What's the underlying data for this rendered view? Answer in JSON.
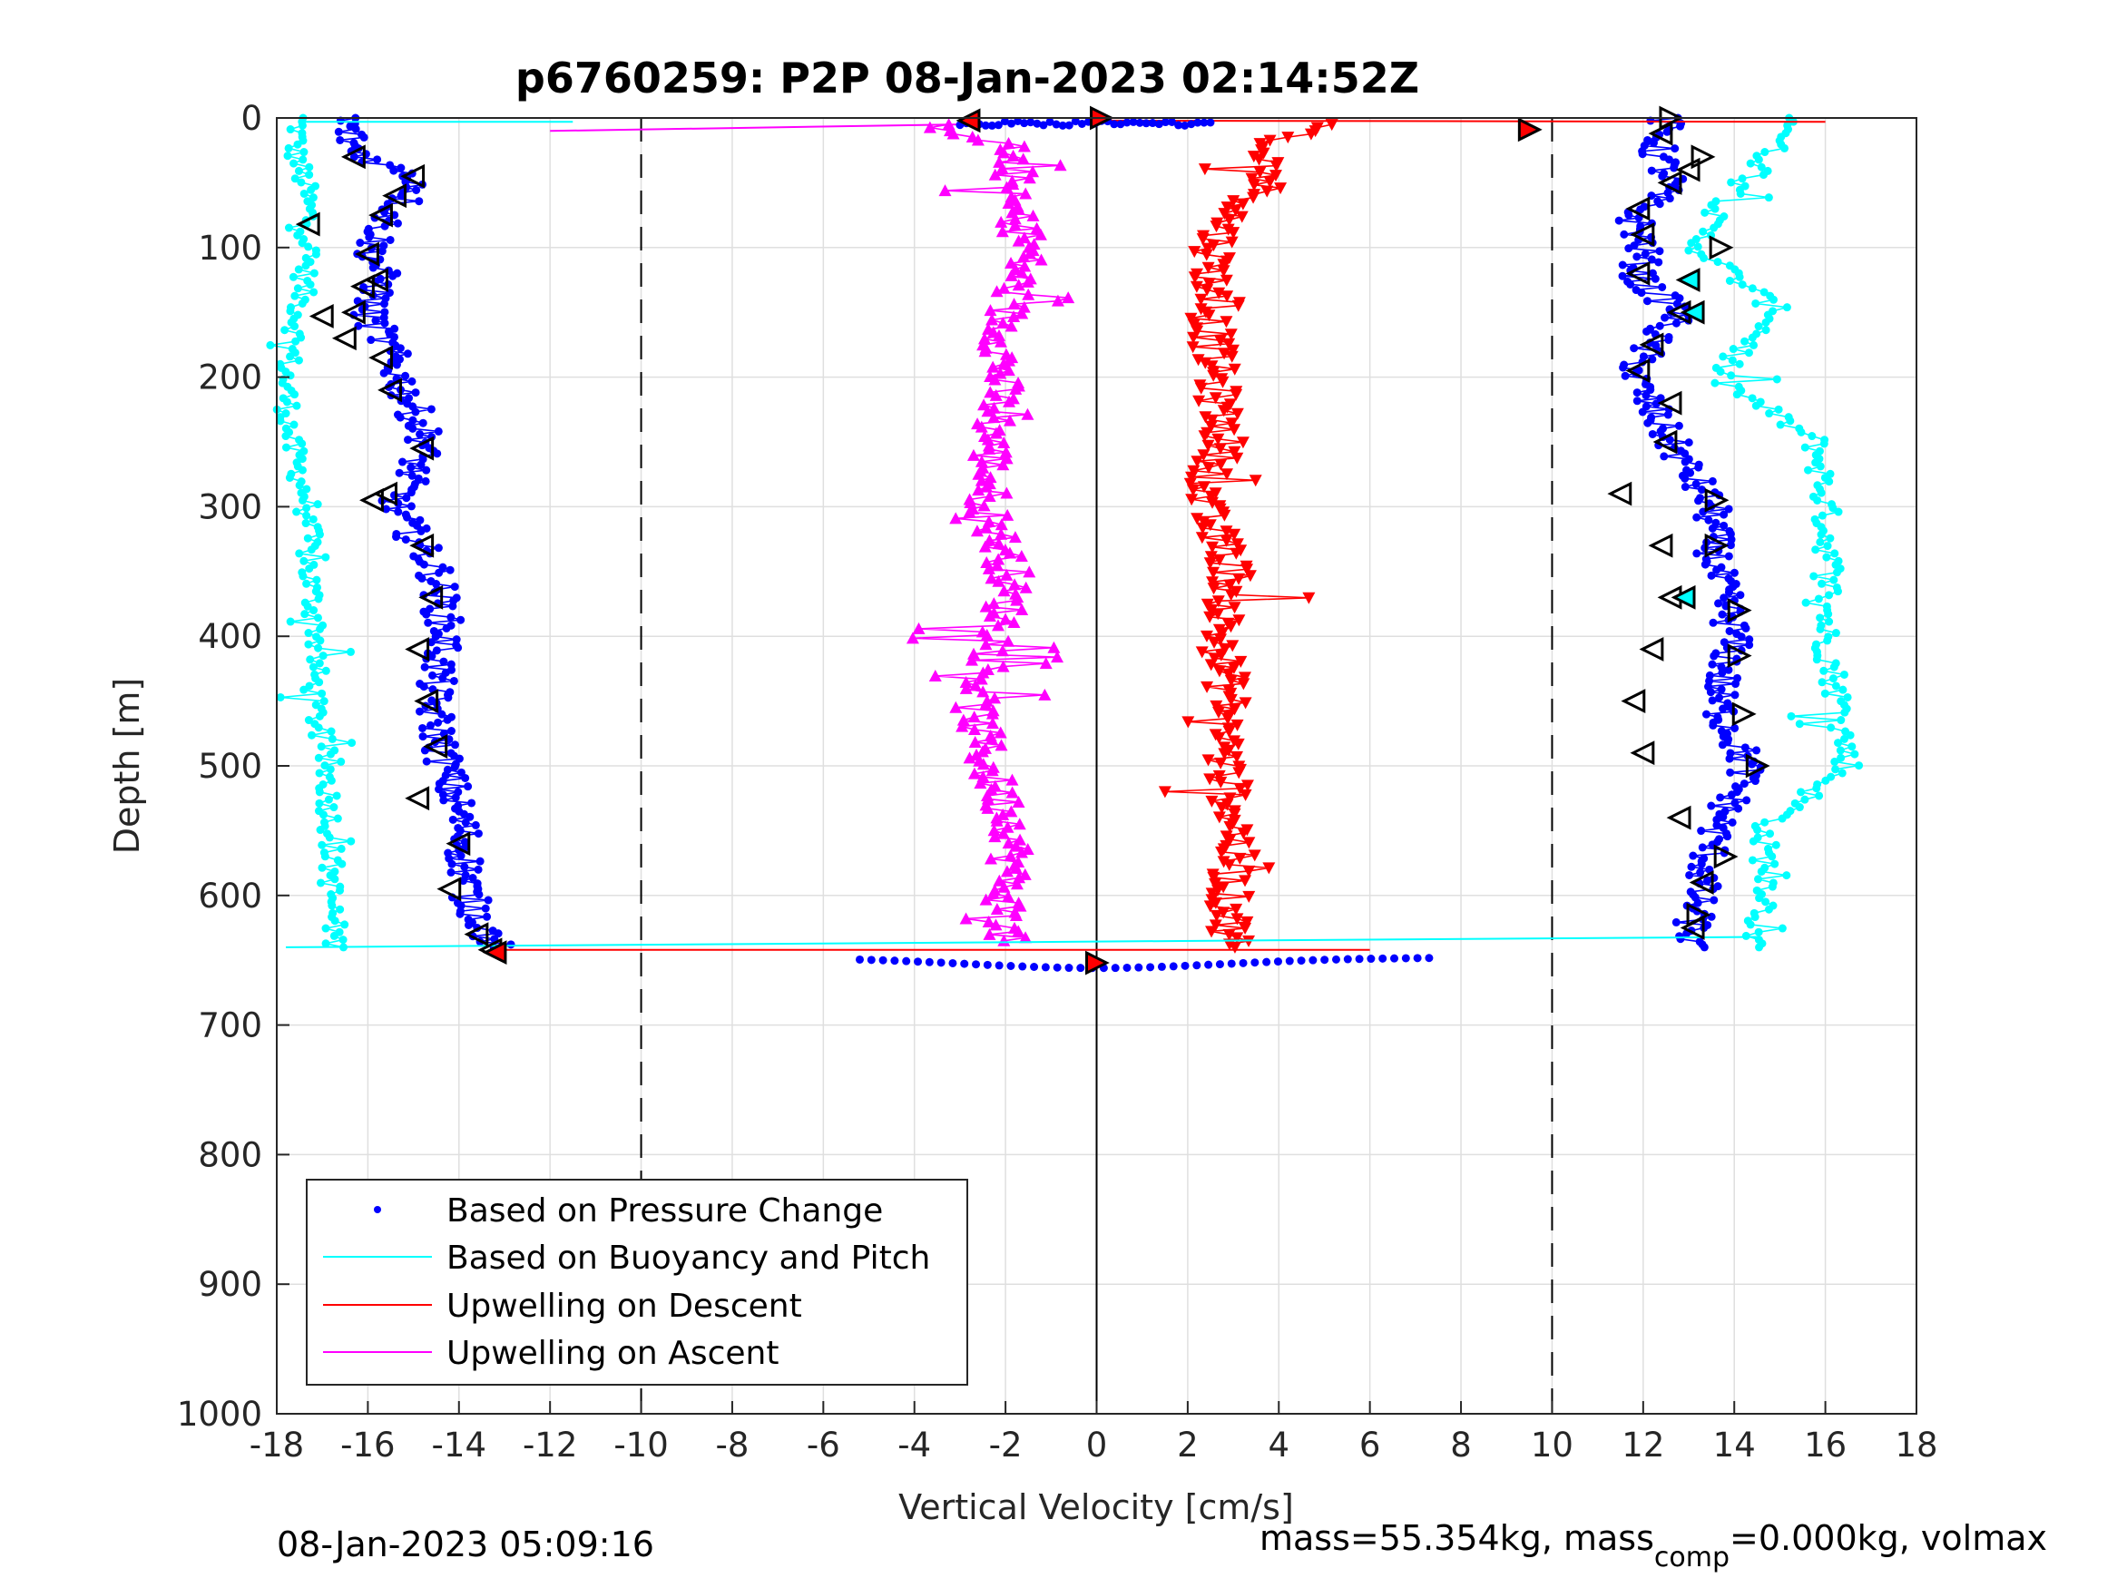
{
  "chart_data": {
    "type": "scatter",
    "title": "p6760259: P2P 08-Jan-2023 02:14:52Z",
    "xlabel": "Vertical Velocity [cm/s]",
    "ylabel": "Depth [m]",
    "xlim": [
      -18,
      18
    ],
    "ylim": [
      0,
      1000
    ],
    "y_reversed": true,
    "grid": true,
    "x_ticks": [
      "-18",
      "-16",
      "-14",
      "-12",
      "-10",
      "-8",
      "-6",
      "-4",
      "-2",
      "0",
      "2",
      "4",
      "6",
      "8",
      "10",
      "12",
      "14",
      "16",
      "18"
    ],
    "y_ticks": [
      "0",
      "100",
      "200",
      "300",
      "400",
      "500",
      "600",
      "700",
      "800",
      "900",
      "1000"
    ],
    "reference_lines": [
      {
        "x": -10,
        "style": "dashed"
      },
      {
        "x": 0,
        "style": "solid"
      },
      {
        "x": 10,
        "style": "dashed"
      }
    ],
    "legend_position": "bottom-left",
    "series": [
      {
        "name": "Based on Pressure Change",
        "color": "#0000ff",
        "marker": "dot",
        "descent_profile": {
          "depth": [
            0,
            25,
            50,
            75,
            100,
            125,
            150,
            175,
            200,
            250,
            300,
            350,
            400,
            450,
            500,
            550,
            600,
            640
          ],
          "velocity": [
            -16.5,
            -16.3,
            -14.8,
            -15.5,
            -15.9,
            -15.7,
            -16.0,
            -15.6,
            -15.3,
            -14.7,
            -15.4,
            -14.5,
            -14.3,
            -14.6,
            -14.3,
            -13.9,
            -13.8,
            -13.2
          ]
        },
        "ascent_profile": {
          "depth": [
            0,
            25,
            50,
            75,
            100,
            125,
            150,
            175,
            200,
            250,
            300,
            350,
            400,
            450,
            500,
            550,
            600,
            640
          ],
          "velocity": [
            12.5,
            12.3,
            12.6,
            11.8,
            12.0,
            11.9,
            12.8,
            12.1,
            11.8,
            12.6,
            13.5,
            13.6,
            14.0,
            13.6,
            14.3,
            13.6,
            13.2,
            13.0
          ]
        }
      },
      {
        "name": "Based on Buoyancy and Pitch",
        "color": "#00ffff",
        "marker": "dot",
        "descent_profile": {
          "depth": [
            0,
            25,
            50,
            75,
            100,
            150,
            200,
            250,
            300,
            350,
            400,
            450,
            500,
            550,
            600,
            640
          ],
          "velocity": [
            -17.5,
            -17.6,
            -17.4,
            -17.3,
            -17.3,
            -17.5,
            -17.8,
            -17.7,
            -17.3,
            -17.3,
            -17.1,
            -17.2,
            -16.9,
            -16.8,
            -16.8,
            -16.7
          ]
        },
        "ascent_profile": {
          "depth": [
            0,
            25,
            50,
            75,
            100,
            150,
            200,
            250,
            300,
            350,
            400,
            450,
            500,
            550,
            600,
            640
          ],
          "velocity": [
            15.5,
            14.8,
            14.4,
            13.5,
            13.2,
            15.0,
            13.6,
            15.8,
            16.0,
            16.1,
            16.0,
            16.3,
            16.5,
            14.6,
            14.8,
            14.3
          ]
        }
      },
      {
        "name": "Upwelling on Descent",
        "color": "#ff0000",
        "marker": "triangle-down",
        "profile": {
          "depth": [
            5,
            20,
            40,
            60,
            80,
            100,
            150,
            200,
            250,
            300,
            350,
            400,
            450,
            500,
            550,
            600,
            640
          ],
          "velocity": [
            5.0,
            3.5,
            3.8,
            3.6,
            2.8,
            2.6,
            2.5,
            2.6,
            2.8,
            2.3,
            3.0,
            2.7,
            2.9,
            2.8,
            3.1,
            2.9,
            3.0
          ]
        }
      },
      {
        "name": "Upwelling on Ascent",
        "color": "#ff00ff",
        "marker": "triangle-up",
        "profile": {
          "depth": [
            5,
            20,
            40,
            60,
            80,
            100,
            150,
            200,
            250,
            300,
            350,
            400,
            450,
            500,
            550,
            600,
            635
          ],
          "velocity": [
            -3.5,
            -2.0,
            -1.8,
            -2.0,
            -1.7,
            -1.5,
            -2.0,
            -2.1,
            -2.3,
            -2.4,
            -1.9,
            -2.1,
            -2.7,
            -2.4,
            -1.8,
            -2.0,
            -2.0
          ]
        }
      }
    ]
  },
  "footer": {
    "timestamp": "08-Jan-2023 05:09:16",
    "mass_prefix": "mass=55.354kg, mass",
    "mass_sub": "comp",
    "mass_suffix": "=0.000kg, volmax"
  },
  "colors": {
    "axis": "#262626",
    "grid": "#dfdfdf"
  }
}
